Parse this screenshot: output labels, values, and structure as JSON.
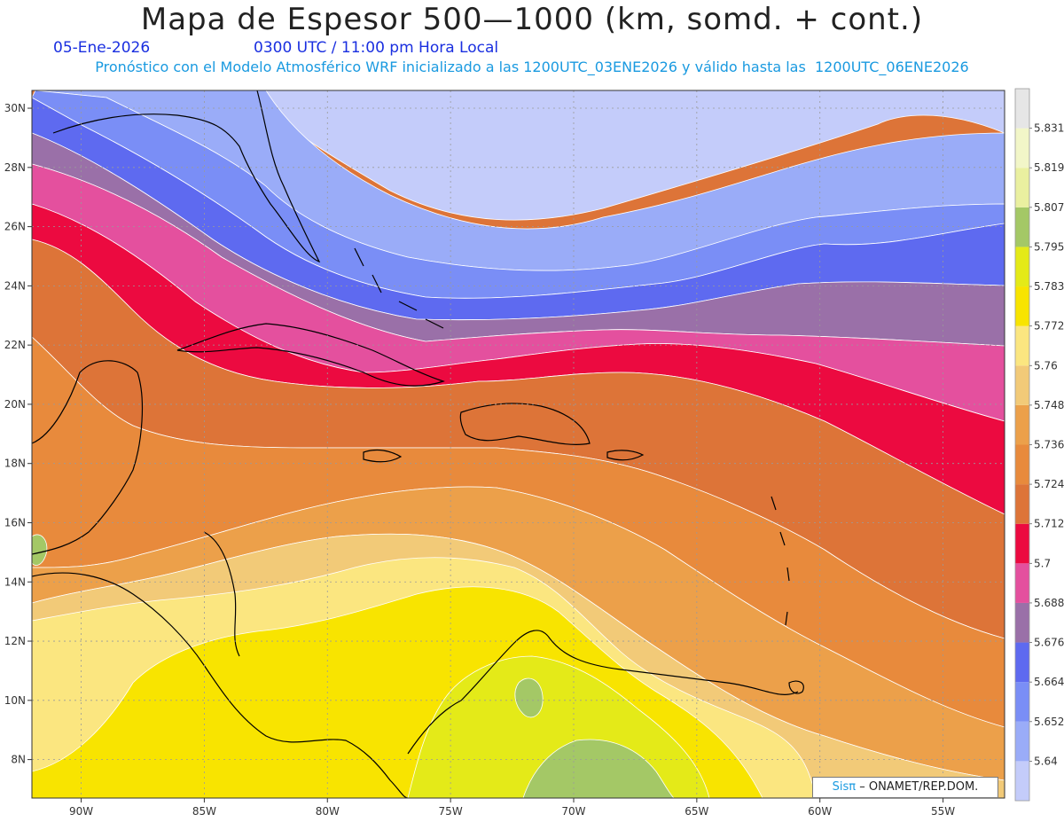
{
  "title": "Mapa de Espesor 500—1000 (km, somd. + cont.)",
  "date": "05-Ene-2026",
  "time_label": "0300 UTC / 11:00 pm Hora Local",
  "forecast_note": "Pronóstico con el Modelo Atmosférico WRF inicializado a las 1200UTC_03ENE2026 y válido hasta las  1200UTC_06ENE2026",
  "credit": {
    "brand": "Sisπ",
    "text": "– ONAMET/REP.DOM."
  },
  "map": {
    "lon_range": [
      -92,
      -52.5
    ],
    "lat_range": [
      6.7,
      30.6
    ],
    "lon_ticks": [
      "90W",
      "85W",
      "80W",
      "75W",
      "70W",
      "65W",
      "60W",
      "55W"
    ],
    "lat_ticks": [
      "8N",
      "10N",
      "12N",
      "14N",
      "16N",
      "18N",
      "20N",
      "22N",
      "24N",
      "26N",
      "28N",
      "30N"
    ],
    "gridlines": true
  },
  "colorbar": {
    "colors": [
      "#c4ccfa",
      "#9aacf8",
      "#7a8ef6",
      "#5e6af0",
      "#9a70a8",
      "#e4509e",
      "#ec0a40",
      "#dd7438",
      "#e88a3c",
      "#eca04a",
      "#f2ca78",
      "#fbe680",
      "#f8e400",
      "#e4ea18",
      "#a4c866",
      "#eaf0a0",
      "#f2f6c8",
      "#e6e6e6"
    ],
    "labels": [
      "5.64",
      "5.652",
      "5.664",
      "5.676",
      "5.688",
      "5.7",
      "5.712",
      "5.724",
      "5.736",
      "5.748",
      "5.76",
      "5.772",
      "5.783",
      "5.795",
      "5.807",
      "5.819",
      "5.831"
    ]
  }
}
